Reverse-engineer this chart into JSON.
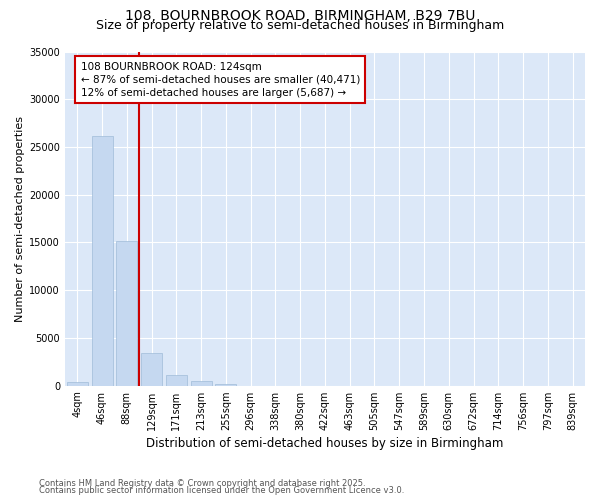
{
  "title_line1": "108, BOURNBROOK ROAD, BIRMINGHAM, B29 7BU",
  "title_line2": "Size of property relative to semi-detached houses in Birmingham",
  "xlabel": "Distribution of semi-detached houses by size in Birmingham",
  "ylabel": "Number of semi-detached properties",
  "categories": [
    "4sqm",
    "46sqm",
    "88sqm",
    "129sqm",
    "171sqm",
    "213sqm",
    "255sqm",
    "296sqm",
    "338sqm",
    "380sqm",
    "422sqm",
    "463sqm",
    "505sqm",
    "547sqm",
    "589sqm",
    "630sqm",
    "672sqm",
    "714sqm",
    "756sqm",
    "797sqm",
    "839sqm"
  ],
  "values": [
    400,
    26100,
    15200,
    3400,
    1150,
    450,
    150,
    0,
    0,
    0,
    0,
    0,
    0,
    0,
    0,
    0,
    0,
    0,
    0,
    0,
    0
  ],
  "bar_color": "#c5d8f0",
  "bar_edge_color": "#a0bcd8",
  "property_line_x": 2.5,
  "annotation_text": "108 BOURNBROOK ROAD: 124sqm\n← 87% of semi-detached houses are smaller (40,471)\n12% of semi-detached houses are larger (5,687) →",
  "annotation_box_color": "#ffffff",
  "annotation_box_edge": "#cc0000",
  "line_color": "#cc0000",
  "ylim": [
    0,
    35000
  ],
  "fig_bg_color": "#ffffff",
  "plot_bg_color": "#dce8f8",
  "footer_line1": "Contains HM Land Registry data © Crown copyright and database right 2025.",
  "footer_line2": "Contains public sector information licensed under the Open Government Licence v3.0.",
  "title_fontsize": 10,
  "subtitle_fontsize": 9,
  "tick_fontsize": 7,
  "ylabel_fontsize": 8,
  "xlabel_fontsize": 8.5,
  "footer_fontsize": 6,
  "annotation_fontsize": 7.5
}
